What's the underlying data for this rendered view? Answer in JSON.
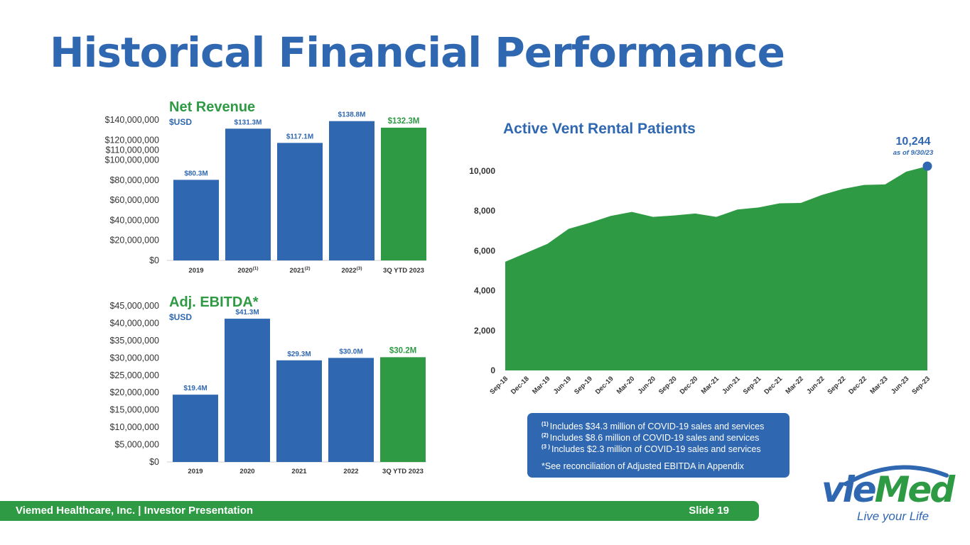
{
  "page": {
    "title": "Historical Financial Performance",
    "footer_left": "Viemed Healthcare, Inc. | Investor Presentation",
    "footer_right": "Slide 19"
  },
  "colors": {
    "blue": "#2f67b1",
    "green": "#2f9a44",
    "axis_text": "#333333"
  },
  "notes": {
    "items": [
      {
        "marker": "(1)",
        "text": "Includes $34.3 million of COVID-19 sales and services"
      },
      {
        "marker": "(2)",
        "text": "Includes $8.6 million of COVID-19 sales and services"
      },
      {
        "marker": "(3 )",
        "text": "Includes $2.3 million of COVID-19 sales and services"
      }
    ],
    "reconciliation": "*See reconciliation of Adjusted EBITDA in Appendix"
  },
  "logo": {
    "word_part1": "vie",
    "word_part2": "Med",
    "tagline": "Live your Life"
  },
  "chart_data": [
    {
      "type": "bar",
      "title": "Net Revenue",
      "subtitle": "$USD",
      "categories": [
        "2019",
        "2020",
        "2021",
        "2022",
        "3Q YTD 2023"
      ],
      "category_superscripts": [
        "",
        "(1)",
        "(2)",
        "(3)",
        ""
      ],
      "values": [
        80.3,
        131.3,
        117.1,
        138.8,
        132.3
      ],
      "value_unit": "millions USD",
      "data_labels": [
        "$80.3M",
        "$131.3M",
        "$117.1M",
        "$138.8M",
        "$132.3M"
      ],
      "highlight_index": 4,
      "yticks": [
        0,
        20,
        40,
        60,
        80,
        100,
        110,
        120,
        140
      ],
      "ytick_labels": [
        "$0",
        "$20,000,000",
        "$40,000,000",
        "$60,000,000",
        "$80,000,000",
        "$100,000,000",
        "$110,000,000",
        "$120,000,000",
        "$140,000,000"
      ],
      "ylim": [
        0,
        140
      ],
      "grid": false
    },
    {
      "type": "bar",
      "title": "Adj. EBITDA*",
      "subtitle": "$USD",
      "categories": [
        "2019",
        "2020",
        "2021",
        "2022",
        "3Q YTD 2023"
      ],
      "category_superscripts": [
        "",
        "",
        "",
        "",
        ""
      ],
      "values": [
        19.4,
        41.3,
        29.3,
        30.0,
        30.2
      ],
      "value_unit": "millions USD",
      "data_labels": [
        "$19.4M",
        "$41.3M",
        "$29.3M",
        "$30.0M",
        "$30.2M"
      ],
      "highlight_index": 4,
      "yticks": [
        0,
        5,
        10,
        15,
        20,
        25,
        30,
        35,
        40,
        45
      ],
      "ytick_labels": [
        "$0",
        "$5,000,000",
        "$10,000,000",
        "$15,000,000",
        "$20,000,000",
        "$25,000,000",
        "$30,000,000",
        "$35,000,000",
        "$40,000,000",
        "$45,000,000"
      ],
      "ylim": [
        0,
        45
      ],
      "grid": false
    },
    {
      "type": "area",
      "title": "Active Vent Rental Patients",
      "categories": [
        "Sep-18",
        "Dec-18",
        "Mar-19",
        "Jun-19",
        "Sep-19",
        "Dec-19",
        "Mar-20",
        "Jun-20",
        "Sep-20",
        "Dec-20",
        "Mar-21",
        "Jun-21",
        "Sep-21",
        "Dec-21",
        "Mar-22",
        "Jun-22",
        "Sep-22",
        "Dec-22",
        "Mar-23",
        "Jun-23",
        "Sep-23"
      ],
      "values": [
        5450,
        5900,
        6350,
        7100,
        7400,
        7750,
        7950,
        7700,
        7770,
        7870,
        7700,
        8070,
        8170,
        8380,
        8400,
        8800,
        9100,
        9300,
        9330,
        9970,
        10244
      ],
      "ylim": [
        0,
        10000
      ],
      "yticks": [
        0,
        2000,
        4000,
        6000,
        8000,
        10000
      ],
      "ytick_labels": [
        "0",
        "2,000",
        "4,000",
        "6,000",
        "8,000",
        "10,000"
      ],
      "annotation": {
        "value_label": "10,244",
        "note": "as of 9/30/23"
      },
      "grid": false
    }
  ]
}
